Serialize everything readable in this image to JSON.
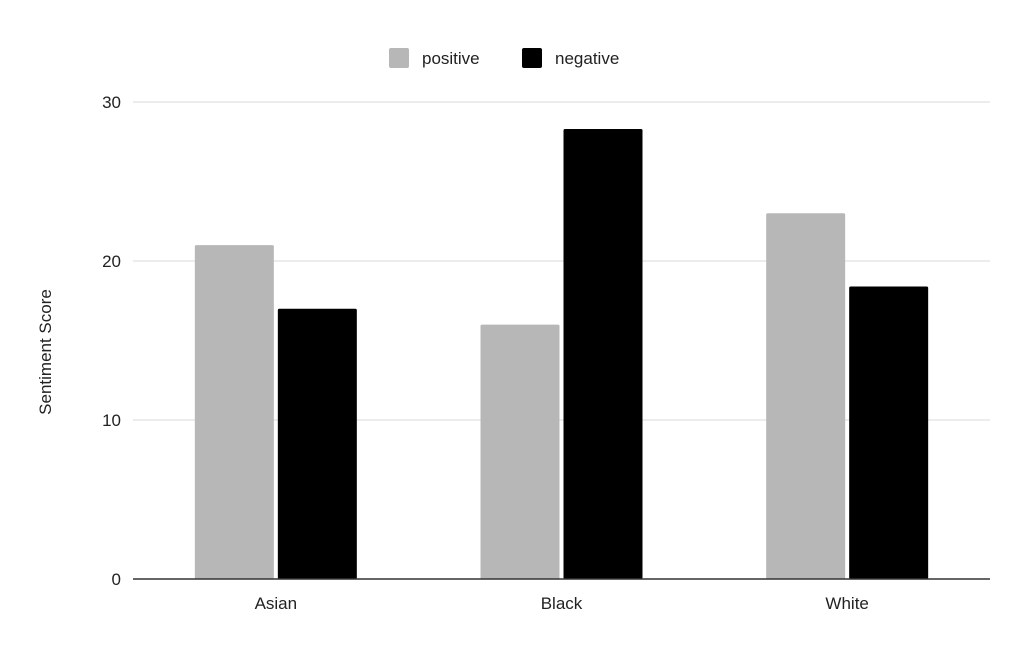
{
  "chart_data": {
    "type": "bar",
    "title": "",
    "xlabel": "",
    "ylabel": "Sentiment Score",
    "categories": [
      "Asian",
      "Black",
      "White"
    ],
    "series": [
      {
        "name": "positive",
        "color": "#b7b7b7",
        "values": [
          21,
          16,
          23
        ]
      },
      {
        "name": "negative",
        "color": "#000000",
        "values": [
          17,
          28.3,
          18.4
        ]
      }
    ],
    "ylim": [
      0,
      30
    ],
    "yticks": [
      "0",
      "10",
      "20",
      "30"
    ],
    "grid": true,
    "legend_position": "top-center"
  }
}
